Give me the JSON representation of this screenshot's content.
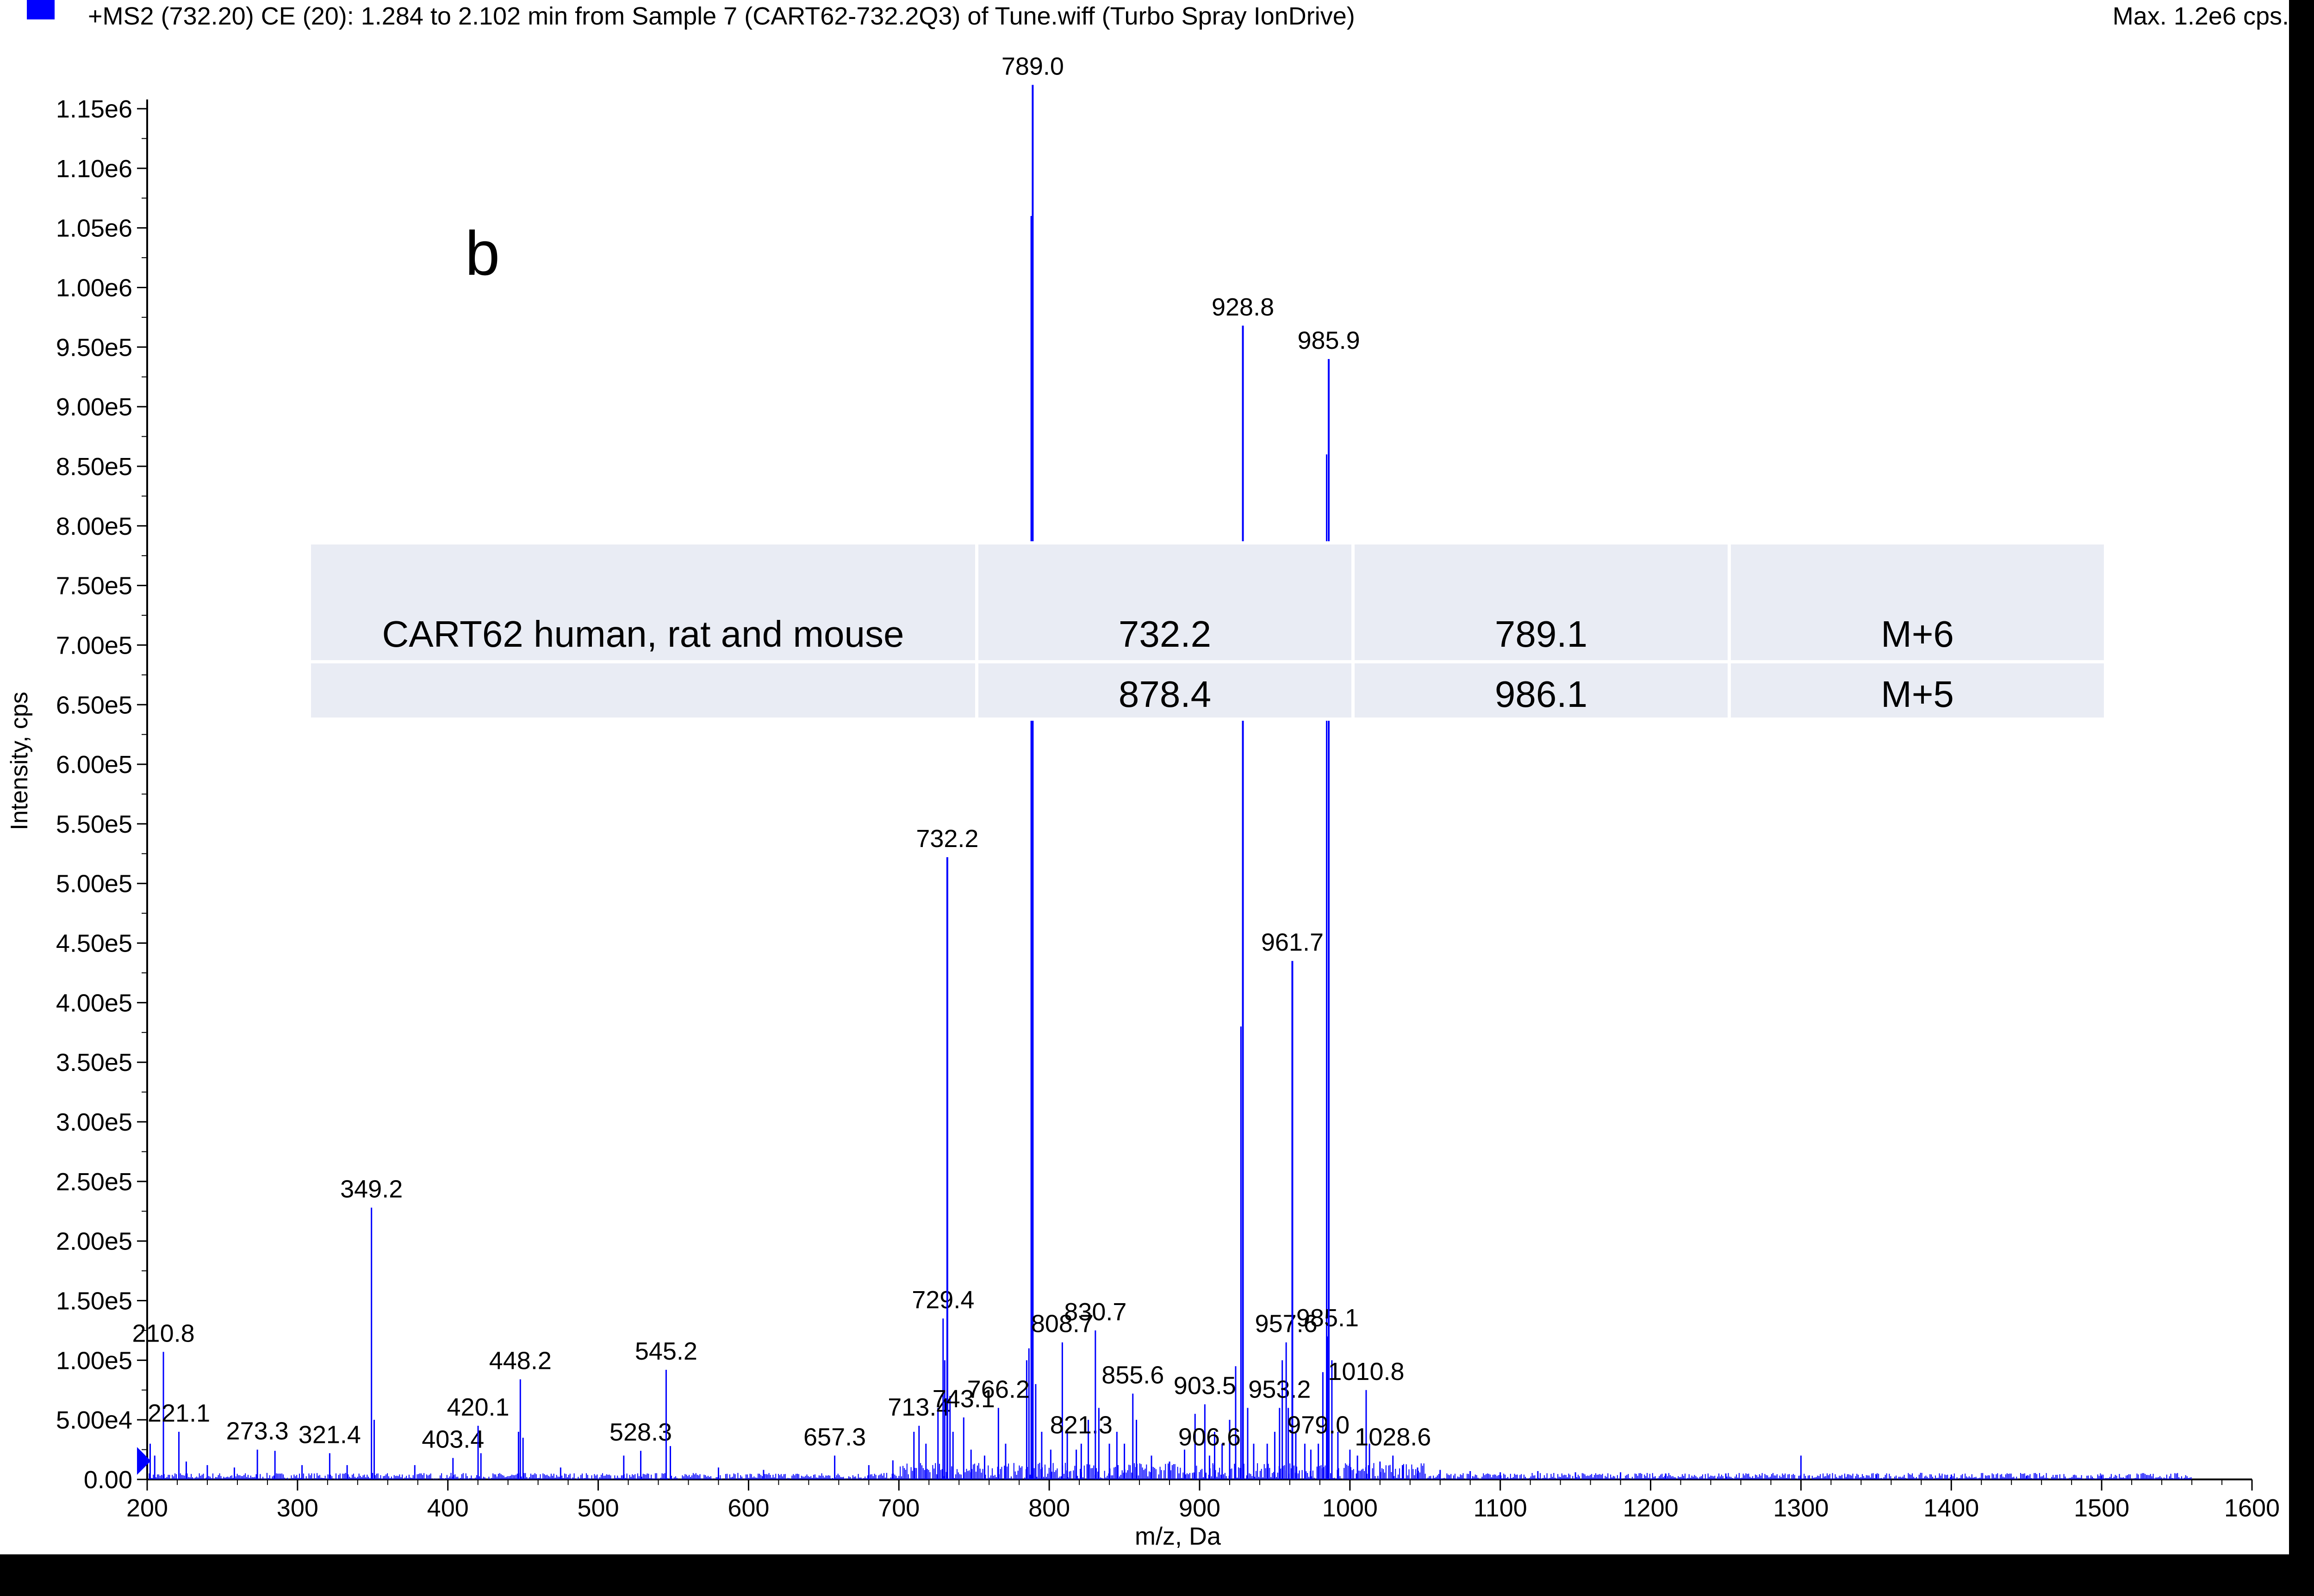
{
  "header": {
    "title": "+MS2 (732.20) CE (20): 1.284 to 2.102 min from Sample 7 (CART62-732.2Q3) of Tune.wiff (Turbo Spray IonDrive)",
    "max_label": "Max. 1.2e6 cps.",
    "series_color": "#0000ff"
  },
  "panel_letter": "b",
  "table": {
    "rows": [
      [
        "CART62 human, rat and  mouse",
        "732.2",
        "789.1",
        "M+6"
      ],
      [
        "",
        "878.4",
        "986.1",
        "M+5"
      ]
    ]
  },
  "chart_data": {
    "type": "bar",
    "xlabel": "m/z, Da",
    "ylabel": "Intensity, cps",
    "xlim": [
      200,
      1600
    ],
    "ylim": [
      0,
      1170000
    ],
    "grid": false,
    "x_ticks": [
      200,
      300,
      400,
      500,
      600,
      700,
      800,
      900,
      1000,
      1100,
      1200,
      1300,
      1400,
      1500,
      1600
    ],
    "y_ticks": [
      {
        "value": 0,
        "label": "0.00"
      },
      {
        "value": 50000,
        "label": "5.00e4"
      },
      {
        "value": 100000,
        "label": "1.00e5"
      },
      {
        "value": 150000,
        "label": "1.50e5"
      },
      {
        "value": 200000,
        "label": "2.00e5"
      },
      {
        "value": 250000,
        "label": "2.50e5"
      },
      {
        "value": 300000,
        "label": "3.00e5"
      },
      {
        "value": 350000,
        "label": "3.50e5"
      },
      {
        "value": 400000,
        "label": "4.00e5"
      },
      {
        "value": 450000,
        "label": "4.50e5"
      },
      {
        "value": 500000,
        "label": "5.00e5"
      },
      {
        "value": 550000,
        "label": "5.50e5"
      },
      {
        "value": 600000,
        "label": "6.00e5"
      },
      {
        "value": 650000,
        "label": "6.50e5"
      },
      {
        "value": 700000,
        "label": "7.00e5"
      },
      {
        "value": 750000,
        "label": "7.50e5"
      },
      {
        "value": 800000,
        "label": "8.00e5"
      },
      {
        "value": 850000,
        "label": "8.50e5"
      },
      {
        "value": 900000,
        "label": "9.00e5"
      },
      {
        "value": 950000,
        "label": "9.50e5"
      },
      {
        "value": 1000000,
        "label": "1.00e6"
      },
      {
        "value": 1050000,
        "label": "1.05e6"
      },
      {
        "value": 1100000,
        "label": "1.10e6"
      },
      {
        "value": 1150000,
        "label": "1.15e6"
      }
    ],
    "labeled_peaks": [
      {
        "mz": 210.8,
        "intensity": 107000,
        "label": "210.8"
      },
      {
        "mz": 221.1,
        "intensity": 40000,
        "label": "221.1"
      },
      {
        "mz": 273.3,
        "intensity": 25000,
        "label": "273.3"
      },
      {
        "mz": 321.4,
        "intensity": 22000,
        "label": "321.4"
      },
      {
        "mz": 349.2,
        "intensity": 228000,
        "label": "349.2"
      },
      {
        "mz": 403.4,
        "intensity": 18000,
        "label": "403.4"
      },
      {
        "mz": 420.1,
        "intensity": 45000,
        "label": "420.1"
      },
      {
        "mz": 448.2,
        "intensity": 84000,
        "label": "448.2"
      },
      {
        "mz": 528.3,
        "intensity": 24000,
        "label": "528.3"
      },
      {
        "mz": 545.2,
        "intensity": 92000,
        "label": "545.2"
      },
      {
        "mz": 657.3,
        "intensity": 20000,
        "label": "657.3"
      },
      {
        "mz": 713.4,
        "intensity": 45000,
        "label": "713.4"
      },
      {
        "mz": 729.4,
        "intensity": 135000,
        "label": "729.4"
      },
      {
        "mz": 732.2,
        "intensity": 522000,
        "label": "732.2"
      },
      {
        "mz": 743.1,
        "intensity": 52000,
        "label": "743.1"
      },
      {
        "mz": 766.2,
        "intensity": 60000,
        "label": "766.2"
      },
      {
        "mz": 789.0,
        "intensity": 1170000,
        "label": "789.0"
      },
      {
        "mz": 808.7,
        "intensity": 115000,
        "label": "808.7"
      },
      {
        "mz": 821.3,
        "intensity": 30000,
        "label": "821.3"
      },
      {
        "mz": 830.7,
        "intensity": 125000,
        "label": "830.7"
      },
      {
        "mz": 855.6,
        "intensity": 72000,
        "label": "855.6"
      },
      {
        "mz": 903.5,
        "intensity": 63000,
        "label": "903.5"
      },
      {
        "mz": 906.6,
        "intensity": 20000,
        "label": "906.6"
      },
      {
        "mz": 928.8,
        "intensity": 968000,
        "label": "928.8"
      },
      {
        "mz": 953.2,
        "intensity": 60000,
        "label": "953.2"
      },
      {
        "mz": 957.6,
        "intensity": 115000,
        "label": "957.6"
      },
      {
        "mz": 961.7,
        "intensity": 435000,
        "label": "961.7"
      },
      {
        "mz": 979.0,
        "intensity": 30000,
        "label": "979.0"
      },
      {
        "mz": 985.1,
        "intensity": 120000,
        "label": "985.1"
      },
      {
        "mz": 985.9,
        "intensity": 940000,
        "label": "985.9"
      },
      {
        "mz": 1010.8,
        "intensity": 75000,
        "label": "1010.8"
      },
      {
        "mz": 1028.6,
        "intensity": 20000,
        "label": "1028.6"
      }
    ],
    "minor_peaks": [
      {
        "mz": 202.0,
        "intensity": 30000
      },
      {
        "mz": 205.0,
        "intensity": 20000
      },
      {
        "mz": 226.0,
        "intensity": 15000
      },
      {
        "mz": 240.0,
        "intensity": 12000
      },
      {
        "mz": 258.0,
        "intensity": 10000
      },
      {
        "mz": 285.0,
        "intensity": 24000
      },
      {
        "mz": 303.0,
        "intensity": 12000
      },
      {
        "mz": 333.0,
        "intensity": 12000
      },
      {
        "mz": 351.0,
        "intensity": 50000
      },
      {
        "mz": 378.0,
        "intensity": 12000
      },
      {
        "mz": 422.0,
        "intensity": 22000
      },
      {
        "mz": 447.0,
        "intensity": 40000
      },
      {
        "mz": 450.0,
        "intensity": 35000
      },
      {
        "mz": 475.0,
        "intensity": 10000
      },
      {
        "mz": 517.0,
        "intensity": 20000
      },
      {
        "mz": 548.0,
        "intensity": 28000
      },
      {
        "mz": 580.0,
        "intensity": 10000
      },
      {
        "mz": 610.0,
        "intensity": 8000
      },
      {
        "mz": 680.0,
        "intensity": 12000
      },
      {
        "mz": 696.0,
        "intensity": 16000
      },
      {
        "mz": 710.0,
        "intensity": 40000
      },
      {
        "mz": 718.0,
        "intensity": 30000
      },
      {
        "mz": 726.0,
        "intensity": 60000
      },
      {
        "mz": 730.5,
        "intensity": 100000
      },
      {
        "mz": 734.0,
        "intensity": 70000
      },
      {
        "mz": 736.0,
        "intensity": 40000
      },
      {
        "mz": 748.0,
        "intensity": 25000
      },
      {
        "mz": 757.0,
        "intensity": 20000
      },
      {
        "mz": 771.0,
        "intensity": 30000
      },
      {
        "mz": 785.0,
        "intensity": 100000
      },
      {
        "mz": 786.5,
        "intensity": 110000
      },
      {
        "mz": 788.0,
        "intensity": 1060000
      },
      {
        "mz": 791.0,
        "intensity": 80000
      },
      {
        "mz": 795.0,
        "intensity": 40000
      },
      {
        "mz": 801.0,
        "intensity": 25000
      },
      {
        "mz": 812.0,
        "intensity": 40000
      },
      {
        "mz": 818.0,
        "intensity": 25000
      },
      {
        "mz": 826.0,
        "intensity": 50000
      },
      {
        "mz": 833.0,
        "intensity": 60000
      },
      {
        "mz": 840.0,
        "intensity": 30000
      },
      {
        "mz": 845.0,
        "intensity": 40000
      },
      {
        "mz": 850.0,
        "intensity": 30000
      },
      {
        "mz": 858.0,
        "intensity": 50000
      },
      {
        "mz": 868.0,
        "intensity": 20000
      },
      {
        "mz": 880.0,
        "intensity": 15000
      },
      {
        "mz": 890.0,
        "intensity": 25000
      },
      {
        "mz": 897.0,
        "intensity": 55000
      },
      {
        "mz": 910.0,
        "intensity": 40000
      },
      {
        "mz": 915.0,
        "intensity": 30000
      },
      {
        "mz": 920.0,
        "intensity": 50000
      },
      {
        "mz": 924.0,
        "intensity": 95000
      },
      {
        "mz": 927.5,
        "intensity": 380000
      },
      {
        "mz": 932.0,
        "intensity": 60000
      },
      {
        "mz": 936.0,
        "intensity": 30000
      },
      {
        "mz": 945.0,
        "intensity": 30000
      },
      {
        "mz": 950.0,
        "intensity": 40000
      },
      {
        "mz": 955.0,
        "intensity": 100000
      },
      {
        "mz": 959.0,
        "intensity": 60000
      },
      {
        "mz": 964.0,
        "intensity": 40000
      },
      {
        "mz": 970.0,
        "intensity": 30000
      },
      {
        "mz": 974.0,
        "intensity": 25000
      },
      {
        "mz": 982.0,
        "intensity": 90000
      },
      {
        "mz": 984.5,
        "intensity": 860000
      },
      {
        "mz": 988.0,
        "intensity": 100000
      },
      {
        "mz": 992.0,
        "intensity": 40000
      },
      {
        "mz": 1000.0,
        "intensity": 25000
      },
      {
        "mz": 1005.0,
        "intensity": 20000
      },
      {
        "mz": 1013.0,
        "intensity": 30000
      },
      {
        "mz": 1020.0,
        "intensity": 15000
      },
      {
        "mz": 1035.0,
        "intensity": 12000
      },
      {
        "mz": 1045.0,
        "intensity": 10000
      },
      {
        "mz": 1060.0,
        "intensity": 8000
      },
      {
        "mz": 1080.0,
        "intensity": 7000
      },
      {
        "mz": 1100.0,
        "intensity": 6000
      },
      {
        "mz": 1125.0,
        "intensity": 7000
      },
      {
        "mz": 1150.0,
        "intensity": 6000
      },
      {
        "mz": 1180.0,
        "intensity": 6000
      },
      {
        "mz": 1210.0,
        "intensity": 5000
      },
      {
        "mz": 1250.0,
        "intensity": 5000
      },
      {
        "mz": 1300.0,
        "intensity": 20000
      },
      {
        "mz": 1350.0,
        "intensity": 4000
      },
      {
        "mz": 1400.0,
        "intensity": 4000
      },
      {
        "mz": 1450.0,
        "intensity": 3000
      },
      {
        "mz": 1500.0,
        "intensity": 3000
      }
    ]
  }
}
